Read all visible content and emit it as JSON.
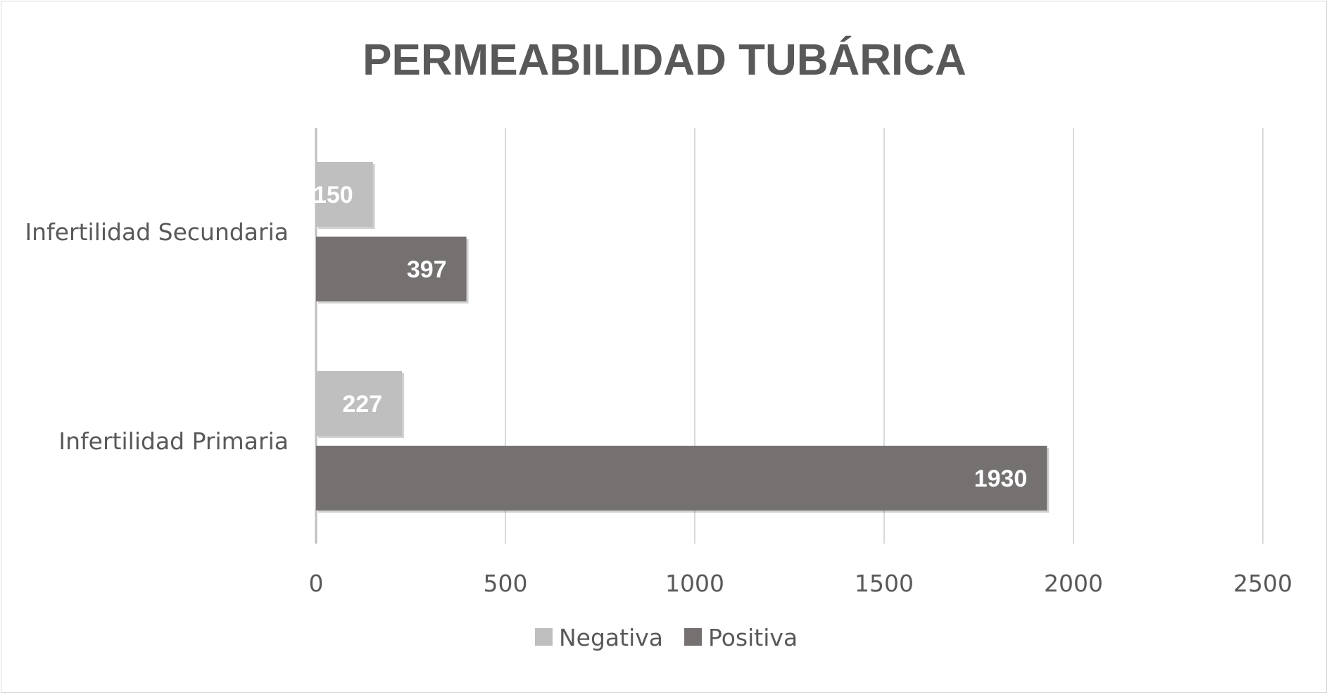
{
  "chart_data": {
    "type": "bar",
    "orientation": "horizontal",
    "title": "PERMEABILIDAD TUBÁRICA",
    "categories": [
      "Infertilidad Secundaria",
      "Infertilidad Primaria"
    ],
    "series": [
      {
        "name": "Negativa",
        "values": [
          150,
          227
        ],
        "color": "#bfbfbf"
      },
      {
        "name": "Positiva",
        "values": [
          397,
          1930
        ],
        "color": "#767171"
      }
    ],
    "xlim": [
      0,
      2500
    ],
    "xticks": [
      0,
      500,
      1000,
      1500,
      2000,
      2500
    ],
    "grid": true,
    "legend": "bottom",
    "data_labels": true
  }
}
